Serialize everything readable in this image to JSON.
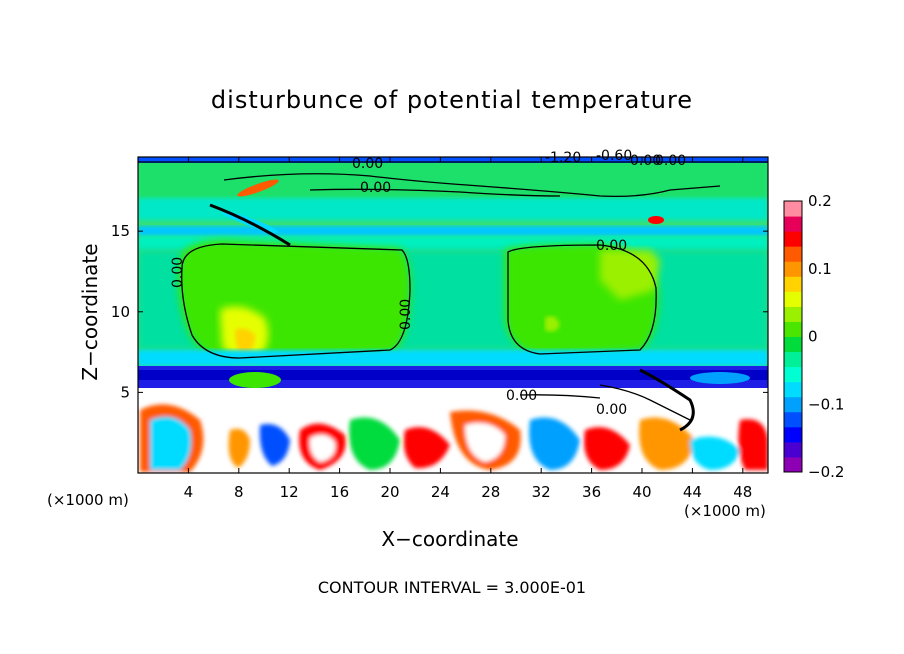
{
  "chart_data": {
    "type": "heatmap",
    "title": "disturbunce of potential temperature",
    "xlabel": "X−coordinate",
    "ylabel": "Z−coordinate",
    "x_unit_label": "(×1000 m)",
    "x_unit_label_right": "(×1000 m)",
    "xlim": [
      0,
      50
    ],
    "ylim": [
      0,
      19.6
    ],
    "x_ticks": [
      "4",
      "8",
      "12",
      "16",
      "20",
      "24",
      "28",
      "32",
      "36",
      "40",
      "44",
      "48"
    ],
    "y_ticks": [
      "5",
      "10",
      "15"
    ],
    "colorbar": {
      "range": [
        -0.2,
        0.2
      ],
      "tick_labels": [
        "0.2",
        "0.1",
        "0",
        "−0.1",
        "−0.2"
      ],
      "colors": [
        "#8e00b4",
        "#4b00d2",
        "#0000ff",
        "#0050ff",
        "#00a0ff",
        "#00dcff",
        "#00ffd2",
        "#00f09a",
        "#00dc3c",
        "#4be600",
        "#9bf000",
        "#e6ff00",
        "#ffd200",
        "#ff9600",
        "#ff5a00",
        "#ff0000",
        "#e6005a",
        "#ff8ca0"
      ]
    },
    "contour_labels": [
      "0.00",
      "0.00",
      "0.00",
      "0.00",
      "0.00",
      "0.00",
      "0.00",
      "0.00",
      "-1.20",
      "-0.60",
      "0.00"
    ],
    "contour_interval_text": "CONTOUR INTERVAL = 3.000E-01"
  }
}
